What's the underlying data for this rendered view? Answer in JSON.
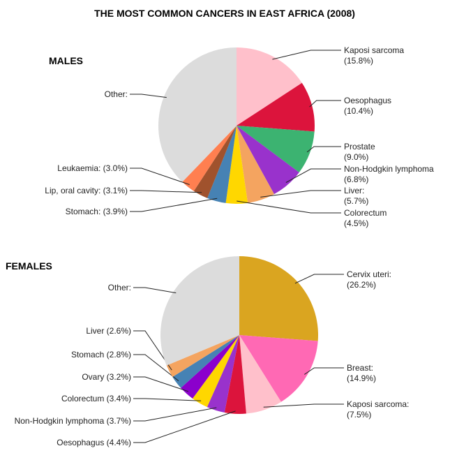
{
  "chart_data": [
    {
      "type": "pie",
      "title": "THE MOST COMMON CANCERS IN EAST AFRICA (2008)",
      "subtitle": "MALES",
      "slices": [
        {
          "label": "Kaposi sarcoma",
          "pct_text": "(15.8%)",
          "value": 15.8,
          "color": "#FFC0CB"
        },
        {
          "label": "Oesophagus",
          "pct_text": "(10.4%)",
          "value": 10.4,
          "color": "#DC143C"
        },
        {
          "label": "Prostate",
          "pct_text": "(9.0%)",
          "value": 9.0,
          "color": "#3CB371"
        },
        {
          "label": "Non-Hodgkin lymphoma",
          "pct_text": "(6.8%)",
          "value": 6.8,
          "color": "#9932CC"
        },
        {
          "label": "Liver:",
          "pct_text": "(5.7%)",
          "value": 5.7,
          "color": "#F4A460"
        },
        {
          "label": "Colorectum",
          "pct_text": "(4.5%)",
          "value": 4.5,
          "color": "#FFD700"
        },
        {
          "label": "Stomach:",
          "pct_text": "(3.9%)",
          "value": 3.9,
          "color": "#4682B4"
        },
        {
          "label": "Lip, oral cavity:",
          "pct_text": "(3.1%)",
          "value": 3.1,
          "color": "#A0522D"
        },
        {
          "label": "Leukaemia:",
          "pct_text": "(3.0%)",
          "value": 3.0,
          "color": "#FF7F50"
        },
        {
          "label": "Other:",
          "pct_text": "",
          "value": 37.8,
          "color": "#DCDCDC"
        }
      ]
    },
    {
      "type": "pie",
      "subtitle": "FEMALES",
      "slices": [
        {
          "label": "Cervix uteri:",
          "pct_text": "(26.2%)",
          "value": 26.2,
          "color": "#DAA520"
        },
        {
          "label": "Breast:",
          "pct_text": "(14.9%)",
          "value": 14.9,
          "color": "#FF69B4"
        },
        {
          "label": "Kaposi sarcoma:",
          "pct_text": "(7.5%)",
          "value": 7.5,
          "color": "#FFC0CB"
        },
        {
          "label": "Oesophagus",
          "pct_text": "(4.4%)",
          "value": 4.4,
          "color": "#DC143C"
        },
        {
          "label": "Non-Hodgkin lymphoma",
          "pct_text": "(3.7%)",
          "value": 3.7,
          "color": "#9932CC"
        },
        {
          "label": "Colorectum",
          "pct_text": "(3.4%)",
          "value": 3.4,
          "color": "#FFD700"
        },
        {
          "label": "Ovary",
          "pct_text": "(3.2%)",
          "value": 3.2,
          "color": "#8B00CC"
        },
        {
          "label": "Stomach",
          "pct_text": "(2.8%)",
          "value": 2.8,
          "color": "#4682B4"
        },
        {
          "label": "Liver",
          "pct_text": "(2.6%)",
          "value": 2.6,
          "color": "#F4A460"
        },
        {
          "label": "Other:",
          "pct_text": "",
          "value": 31.3,
          "color": "#DCDCDC"
        }
      ]
    }
  ]
}
